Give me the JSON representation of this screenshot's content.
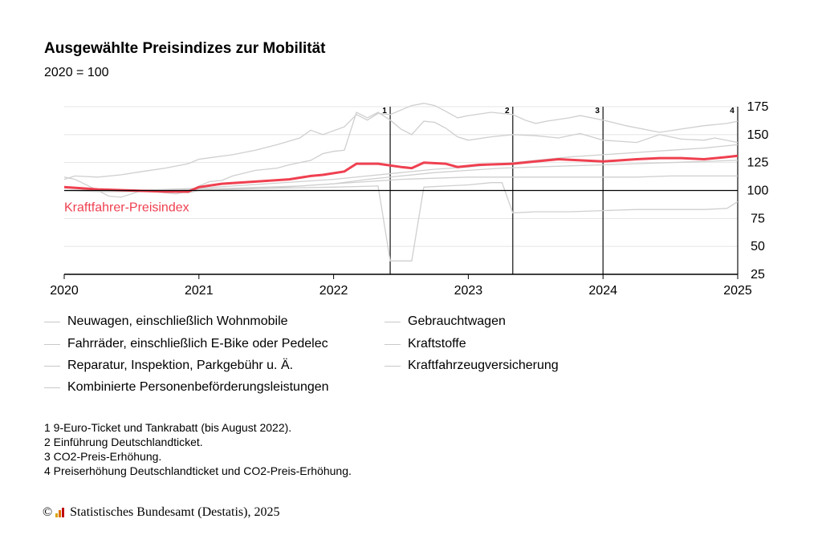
{
  "title": "Ausgewählte Preisindizes zur Mobilität",
  "subtitle": "2020 = 100",
  "highlight_label": "Kraftfahrer-Preisindex",
  "colors": {
    "highlight": "#ef4050",
    "other": "#cfcfcf",
    "baseline": "#000000",
    "grid": "#e4e4e4"
  },
  "legend": [
    "Neuwagen, einschließlich Wohnmobile",
    "Gebrauchtwagen",
    "Fahrräder, einschließlich E-Bike oder Pedelec",
    "Kraftstoffe",
    "Reparatur, Inspektion, Parkgebühr u. Ä.",
    "Kraftfahrzeugversicherung",
    "Kombinierte Personenbeförderungsleistungen"
  ],
  "footnotes": [
    "1 9-Euro-Ticket und Tankrabatt (bis August 2022).",
    "2 Einführung Deutschlandticket.",
    "3 CO2-Preis-Erhöhung.",
    "4 Preiserhöhung Deutschlandticket und CO2-Preis-Erhöhung."
  ],
  "source": "Statistisches Bundesamt (Destatis), 2025",
  "source_symbol": "©",
  "chart_data": {
    "type": "line",
    "x_ticks": [
      "2020",
      "2021",
      "2022",
      "2023",
      "2024",
      "2025"
    ],
    "xlim": [
      2020.0,
      2025.0
    ],
    "y_ticks": [
      25,
      50,
      75,
      100,
      125,
      150,
      175
    ],
    "ylim": [
      25,
      175
    ],
    "baseline": 100,
    "markers": [
      {
        "label": "1",
        "x": 2022.42
      },
      {
        "label": "2",
        "x": 2023.33
      },
      {
        "label": "3",
        "x": 2024.0
      },
      {
        "label": "4",
        "x": 2025.0
      }
    ],
    "highlight_series": {
      "name": "Kraftfahrer-Preisindex",
      "points": [
        [
          2020.0,
          103
        ],
        [
          2020.25,
          101
        ],
        [
          2020.5,
          100
        ],
        [
          2020.75,
          99
        ],
        [
          2020.92,
          99
        ],
        [
          2021.0,
          103
        ],
        [
          2021.17,
          106
        ],
        [
          2021.42,
          108
        ],
        [
          2021.67,
          110
        ],
        [
          2021.83,
          113
        ],
        [
          2021.92,
          114
        ],
        [
          2022.08,
          117
        ],
        [
          2022.17,
          124
        ],
        [
          2022.33,
          124
        ],
        [
          2022.5,
          121
        ],
        [
          2022.58,
          120
        ],
        [
          2022.67,
          125
        ],
        [
          2022.83,
          124
        ],
        [
          2022.92,
          121
        ],
        [
          2023.08,
          123
        ],
        [
          2023.33,
          124
        ],
        [
          2023.5,
          126
        ],
        [
          2023.67,
          128
        ],
        [
          2023.83,
          127
        ],
        [
          2024.0,
          126
        ],
        [
          2024.25,
          128
        ],
        [
          2024.42,
          129
        ],
        [
          2024.58,
          129
        ],
        [
          2024.75,
          128
        ],
        [
          2024.92,
          130
        ],
        [
          2025.0,
          131
        ]
      ]
    },
    "series": [
      {
        "legend_index": 1,
        "points": [
          [
            2020.0,
            112
          ],
          [
            2020.08,
            110
          ],
          [
            2020.25,
            100
          ],
          [
            2020.33,
            95
          ],
          [
            2020.42,
            94
          ],
          [
            2020.58,
            100
          ],
          [
            2020.75,
            98
          ],
          [
            2020.83,
            97
          ],
          [
            2020.92,
            99
          ],
          [
            2021.0,
            104
          ],
          [
            2021.08,
            108
          ],
          [
            2021.17,
            109
          ],
          [
            2021.25,
            113
          ],
          [
            2021.42,
            118
          ],
          [
            2021.58,
            120
          ],
          [
            2021.67,
            123
          ],
          [
            2021.83,
            127
          ],
          [
            2021.92,
            133
          ],
          [
            2022.0,
            135
          ],
          [
            2022.08,
            136
          ],
          [
            2022.17,
            170
          ],
          [
            2022.25,
            165
          ],
          [
            2022.33,
            170
          ],
          [
            2022.42,
            163
          ],
          [
            2022.5,
            155
          ],
          [
            2022.58,
            150
          ],
          [
            2022.67,
            162
          ],
          [
            2022.75,
            161
          ],
          [
            2022.83,
            156
          ],
          [
            2022.92,
            148
          ],
          [
            2023.0,
            145
          ],
          [
            2023.17,
            148
          ],
          [
            2023.33,
            150
          ],
          [
            2023.5,
            149
          ],
          [
            2023.67,
            147
          ],
          [
            2023.83,
            151
          ],
          [
            2024.0,
            145
          ],
          [
            2024.25,
            143
          ],
          [
            2024.42,
            150
          ],
          [
            2024.58,
            146
          ],
          [
            2024.75,
            145
          ],
          [
            2024.83,
            147
          ],
          [
            2025.0,
            143
          ]
        ]
      },
      {
        "legend_index": 2,
        "points": [
          [
            2020.0,
            110
          ],
          [
            2020.08,
            113
          ],
          [
            2020.25,
            112
          ],
          [
            2020.42,
            114
          ],
          [
            2020.58,
            117
          ],
          [
            2020.75,
            120
          ],
          [
            2020.92,
            124
          ],
          [
            2021.0,
            128
          ],
          [
            2021.25,
            132
          ],
          [
            2021.42,
            136
          ],
          [
            2021.58,
            141
          ],
          [
            2021.75,
            147
          ],
          [
            2021.83,
            154
          ],
          [
            2021.92,
            150
          ],
          [
            2022.08,
            157
          ],
          [
            2022.17,
            168
          ],
          [
            2022.25,
            163
          ],
          [
            2022.33,
            169
          ],
          [
            2022.42,
            168
          ],
          [
            2022.5,
            172
          ],
          [
            2022.58,
            176
          ],
          [
            2022.67,
            178
          ],
          [
            2022.75,
            176
          ],
          [
            2022.83,
            171
          ],
          [
            2022.92,
            165
          ],
          [
            2023.0,
            167
          ],
          [
            2023.17,
            170
          ],
          [
            2023.33,
            168
          ],
          [
            2023.42,
            163
          ],
          [
            2023.5,
            160
          ],
          [
            2023.58,
            162
          ],
          [
            2023.75,
            165
          ],
          [
            2023.83,
            167
          ],
          [
            2024.0,
            163
          ],
          [
            2024.17,
            158
          ],
          [
            2024.42,
            152
          ],
          [
            2024.58,
            155
          ],
          [
            2024.75,
            158
          ],
          [
            2024.92,
            160
          ],
          [
            2025.0,
            162
          ]
        ]
      },
      {
        "legend_index": 3,
        "points": [
          [
            2020.0,
            100
          ],
          [
            2020.25,
            99
          ],
          [
            2020.5,
            99
          ],
          [
            2020.75,
            99
          ],
          [
            2020.92,
            98
          ],
          [
            2021.0,
            100
          ],
          [
            2021.25,
            101
          ],
          [
            2021.5,
            102
          ],
          [
            2021.75,
            104
          ],
          [
            2022.0,
            106
          ],
          [
            2022.25,
            108
          ],
          [
            2022.5,
            110
          ],
          [
            2022.75,
            111
          ],
          [
            2023.0,
            112
          ],
          [
            2023.25,
            112
          ],
          [
            2023.5,
            112
          ],
          [
            2023.75,
            112
          ],
          [
            2024.0,
            112
          ],
          [
            2024.25,
            112
          ],
          [
            2024.5,
            113
          ],
          [
            2024.75,
            113
          ],
          [
            2025.0,
            113
          ]
        ]
      },
      {
        "legend_index": 4,
        "points": [
          [
            2020.0,
            100
          ],
          [
            2020.25,
            100
          ],
          [
            2020.5,
            100
          ],
          [
            2020.75,
            101
          ],
          [
            2021.0,
            102
          ],
          [
            2021.25,
            104
          ],
          [
            2021.5,
            106
          ],
          [
            2021.75,
            108
          ],
          [
            2022.0,
            110
          ],
          [
            2022.25,
            113
          ],
          [
            2022.5,
            116
          ],
          [
            2022.75,
            119
          ],
          [
            2023.0,
            121
          ],
          [
            2023.25,
            124
          ],
          [
            2023.5,
            127
          ],
          [
            2023.75,
            130
          ],
          [
            2024.0,
            132
          ],
          [
            2024.25,
            134
          ],
          [
            2024.5,
            136
          ],
          [
            2024.75,
            138
          ],
          [
            2025.0,
            141
          ]
        ]
      },
      {
        "legend_index": 5,
        "points": [
          [
            2020.0,
            100
          ],
          [
            2020.25,
            100
          ],
          [
            2020.5,
            100
          ],
          [
            2020.75,
            100
          ],
          [
            2021.0,
            101
          ],
          [
            2021.25,
            102
          ],
          [
            2021.5,
            103
          ],
          [
            2021.75,
            104
          ],
          [
            2022.0,
            106
          ],
          [
            2022.25,
            110
          ],
          [
            2022.5,
            113
          ],
          [
            2022.75,
            116
          ],
          [
            2023.0,
            118
          ],
          [
            2023.25,
            120
          ],
          [
            2023.5,
            121
          ],
          [
            2023.75,
            122
          ],
          [
            2024.0,
            123
          ],
          [
            2024.25,
            124
          ],
          [
            2024.5,
            125
          ],
          [
            2024.75,
            126
          ],
          [
            2025.0,
            127
          ]
        ]
      },
      {
        "legend_index": 6,
        "points": [
          [
            2020.0,
            100
          ],
          [
            2020.25,
            100
          ],
          [
            2020.5,
            100
          ],
          [
            2020.75,
            100
          ],
          [
            2021.0,
            101
          ],
          [
            2021.5,
            102
          ],
          [
            2022.0,
            103
          ],
          [
            2022.33,
            104
          ],
          [
            2022.42,
            37
          ],
          [
            2022.5,
            37
          ],
          [
            2022.58,
            37
          ],
          [
            2022.67,
            103
          ],
          [
            2022.83,
            104
          ],
          [
            2023.0,
            105
          ],
          [
            2023.17,
            107
          ],
          [
            2023.25,
            107
          ],
          [
            2023.33,
            80
          ],
          [
            2023.5,
            81
          ],
          [
            2023.75,
            81
          ],
          [
            2024.0,
            82
          ],
          [
            2024.25,
            83
          ],
          [
            2024.5,
            83
          ],
          [
            2024.75,
            83
          ],
          [
            2024.92,
            84
          ],
          [
            2025.0,
            90
          ]
        ]
      }
    ]
  }
}
